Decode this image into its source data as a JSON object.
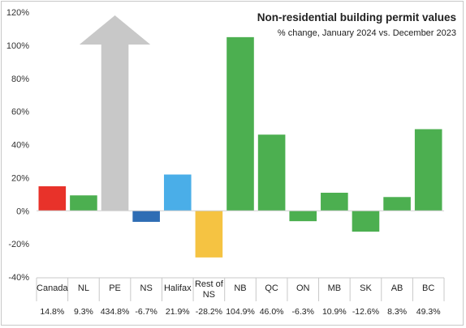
{
  "chart_data": {
    "type": "bar",
    "title": "Non-residential building permit values",
    "subtitle": "% change, January 2024 vs. December  2023",
    "categories": [
      "Canada",
      "NL",
      "PE",
      "NS",
      "Halifax",
      "Rest of NS",
      "NB",
      "QC",
      "ON",
      "MB",
      "SK",
      "AB",
      "BC"
    ],
    "values": [
      14.8,
      9.3,
      434.8,
      -6.7,
      21.9,
      -28.2,
      104.9,
      46.0,
      -6.3,
      10.9,
      -12.6,
      8.3,
      49.3
    ],
    "value_labels": [
      "14.8%",
      "9.3%",
      "434.8%",
      "-6.7%",
      "21.9%",
      "-28.2%",
      "104.9%",
      "46.0%",
      "-6.3%",
      "10.9%",
      "-12.6%",
      "8.3%",
      "49.3%"
    ],
    "bar_colors": [
      "#e8322a",
      "#4caf50",
      "#c8c8c8",
      "#2e6db4",
      "#4aaee8",
      "#f5c342",
      "#4caf50",
      "#4caf50",
      "#4caf50",
      "#4caf50",
      "#4caf50",
      "#4caf50",
      "#4caf50"
    ],
    "off_scale_categories": [
      "PE"
    ],
    "off_scale_marker": "upward-arrow",
    "ylim": [
      -40,
      120
    ],
    "yticks": [
      -40,
      -20,
      0,
      20,
      40,
      60,
      80,
      100,
      120
    ],
    "ytick_labels": [
      "-40%",
      "-20%",
      "0%",
      "20%",
      "40%",
      "60%",
      "80%",
      "100%",
      "120%"
    ],
    "xlabel": "",
    "ylabel": "",
    "grid": false,
    "legend": "none"
  }
}
